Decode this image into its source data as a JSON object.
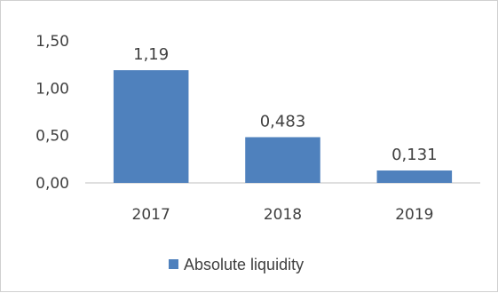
{
  "chart_data": {
    "type": "bar",
    "categories": [
      "2017",
      "2018",
      "2019"
    ],
    "series": [
      {
        "name": "Absolute liquidity",
        "values": [
          1.19,
          0.483,
          0.131
        ],
        "color": "#4f81bd"
      }
    ],
    "data_labels": [
      "1,19",
      "0,483",
      "0,131"
    ],
    "y_tick_labels": [
      "0,00",
      "0,50",
      "1,00",
      "1,50"
    ],
    "y_ticks": [
      0,
      0.5,
      1.0,
      1.5
    ],
    "ylim": [
      0,
      1.5
    ],
    "grid": false,
    "legend_position": "bottom",
    "title": "",
    "xlabel": "",
    "ylabel": ""
  },
  "legend": {
    "label": "Absolute liquidity"
  },
  "colors": {
    "bar": "#4f81bd",
    "axis": "#bfbfbf",
    "text": "#404040"
  }
}
